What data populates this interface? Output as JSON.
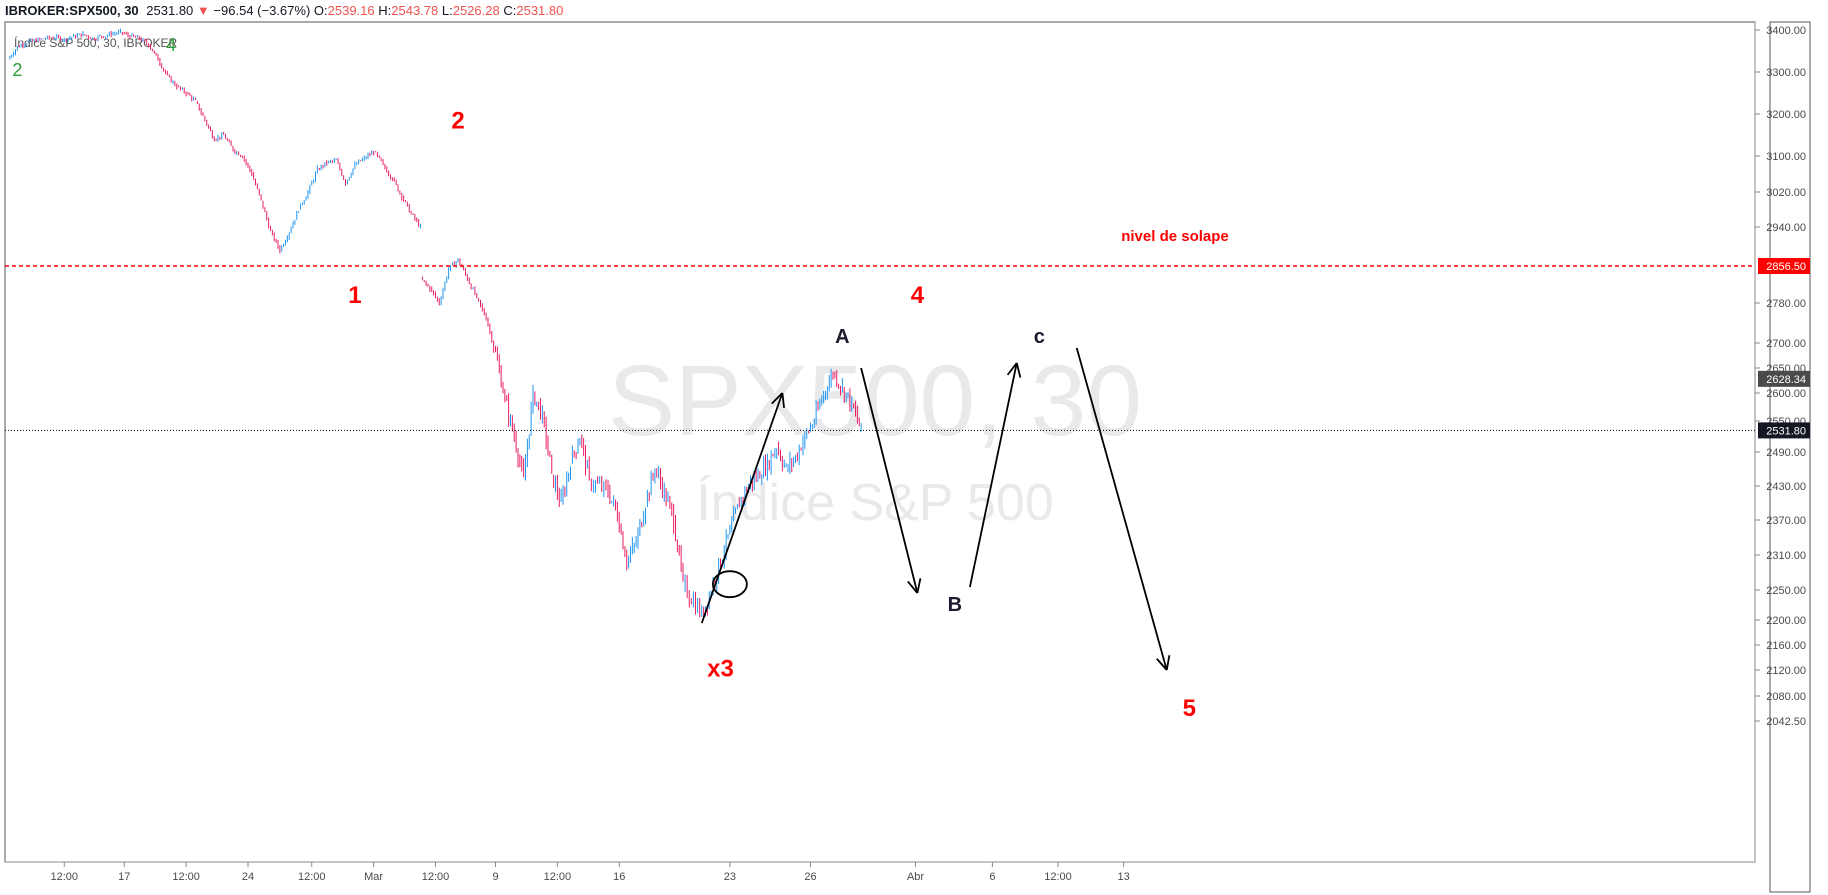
{
  "header": {
    "symbol": "IBROKER:SPX500, 30",
    "last": "2531.80",
    "change_arrow": "▼",
    "change": "−96.54 (−3.67%)",
    "o_label": "O:",
    "o_value": "2539.16",
    "h_label": "H:",
    "h_value": "2543.78",
    "l_label": "L:",
    "l_value": "2526.28",
    "c_label": "C:",
    "c_value": "2531.80",
    "series_title": "Índice S&P 500, 30, IBROKER"
  },
  "watermark": {
    "main": "SPX500, 30",
    "sub": "Índice S&P 500"
  },
  "colors": {
    "up": "#2196f3",
    "down": "#e91e63",
    "wave_red": "#ff0000",
    "wave_green": "#2e9e3a",
    "line_black": "#000000",
    "price_tag_current": "#131722",
    "price_tag_prev": "#4a4a4a",
    "price_tag_level": "#ff0000"
  },
  "chart_data": {
    "type": "candlestick",
    "y_axis": {
      "side": "right",
      "ticks": [
        "3400.00",
        "3300.00",
        "3200.00",
        "3100.00",
        "3020.00",
        "2940.00",
        "2780.00",
        "2700.00",
        "2650.00",
        "2600.00",
        "2550.00",
        "2490.00",
        "2430.00",
        "2370.00",
        "2310.00",
        "2250.00",
        "2200.00",
        "2160.00",
        "2120.00",
        "2080.00",
        "2042.50"
      ],
      "price_tags": [
        {
          "label": "2856.50",
          "kind": "level"
        },
        {
          "label": "2628.34",
          "kind": "prev"
        },
        {
          "label": "2531.80",
          "kind": "current"
        }
      ]
    },
    "x_axis": {
      "ticks": [
        "12:00",
        "17",
        "12:00",
        "24",
        "12:00",
        "Mar",
        "12:00",
        "9",
        "12:00",
        "16",
        "23",
        "26",
        "Abr",
        "6",
        "12:00",
        "13"
      ]
    },
    "price_path": [
      [
        0,
        3330
      ],
      [
        0.5,
        3360
      ],
      [
        1,
        3370
      ],
      [
        1.5,
        3375
      ],
      [
        2,
        3380
      ],
      [
        2.5,
        3382
      ],
      [
        3,
        3378
      ],
      [
        3.5,
        3385
      ],
      [
        4,
        3390
      ],
      [
        4.5,
        3380
      ],
      [
        5,
        3385
      ],
      [
        5.5,
        3390
      ],
      [
        6,
        3395
      ],
      [
        6.5,
        3385
      ],
      [
        7,
        3380
      ],
      [
        7.5,
        3365
      ],
      [
        8,
        3330
      ],
      [
        8.5,
        3290
      ],
      [
        9,
        3265
      ],
      [
        9.5,
        3250
      ],
      [
        10,
        3230
      ],
      [
        10.5,
        3185
      ],
      [
        11,
        3140
      ],
      [
        11.5,
        3150
      ],
      [
        12,
        3115
      ],
      [
        12.5,
        3100
      ],
      [
        13,
        3060
      ],
      [
        13.5,
        3000
      ],
      [
        14,
        2930
      ],
      [
        14.5,
        2890
      ],
      [
        15,
        2930
      ],
      [
        15.5,
        2980
      ],
      [
        16,
        3020
      ],
      [
        16.5,
        3070
      ],
      [
        17,
        3085
      ],
      [
        17.5,
        3090
      ],
      [
        18,
        3040
      ],
      [
        18.5,
        3080
      ],
      [
        19,
        3095
      ],
      [
        19.5,
        3110
      ],
      [
        20,
        3080
      ],
      [
        20.5,
        3050
      ],
      [
        21,
        3010
      ],
      [
        21.5,
        2970
      ],
      [
        22,
        2940
      ],
      [
        22,
        2830
      ],
      [
        22.5,
        2810
      ],
      [
        23,
        2780
      ],
      [
        23.5,
        2850
      ],
      [
        24,
        2870
      ],
      [
        24.5,
        2830
      ],
      [
        25,
        2790
      ],
      [
        25.5,
        2750
      ],
      [
        26,
        2680
      ],
      [
        26.5,
        2590
      ],
      [
        27,
        2520
      ],
      [
        27.5,
        2440
      ],
      [
        28,
        2600
      ],
      [
        28.5,
        2560
      ],
      [
        29,
        2450
      ],
      [
        29.5,
        2400
      ],
      [
        30,
        2470
      ],
      [
        30.5,
        2520
      ],
      [
        31,
        2440
      ],
      [
        32,
        2420
      ],
      [
        32.5,
        2380
      ],
      [
        33,
        2300
      ],
      [
        33.5,
        2330
      ],
      [
        34,
        2400
      ],
      [
        34.5,
        2460
      ],
      [
        35,
        2420
      ],
      [
        35.5,
        2370
      ],
      [
        36,
        2260
      ],
      [
        37,
        2210
      ],
      [
        37.5,
        2250
      ],
      [
        38,
        2300
      ],
      [
        38.5,
        2350
      ],
      [
        39,
        2400
      ],
      [
        39.5,
        2430
      ],
      [
        40,
        2450
      ],
      [
        40.5,
        2470
      ],
      [
        41,
        2500
      ],
      [
        41.5,
        2460
      ],
      [
        42,
        2480
      ],
      [
        42.5,
        2520
      ],
      [
        43,
        2550
      ],
      [
        43.5,
        2600
      ],
      [
        44,
        2640
      ],
      [
        44.5,
        2610
      ],
      [
        45,
        2580
      ],
      [
        45.5,
        2531.8
      ]
    ],
    "levels": [
      {
        "price": 2856.5,
        "label": "nivel de solape",
        "style": "dashed",
        "color": "#ff0000"
      },
      {
        "price": 2531.8,
        "style": "dotted",
        "color": "#000000"
      }
    ],
    "wave_labels": [
      {
        "text": "2",
        "x": 0.5,
        "y": 3290,
        "color": "green"
      },
      {
        "text": "4",
        "x": 8.7,
        "y": 3350,
        "color": "green"
      },
      {
        "text": "1",
        "x": 18.5,
        "y": 2780,
        "color": "red"
      },
      {
        "text": "2",
        "x": 24,
        "y": 3165,
        "color": "red"
      },
      {
        "text": "x3",
        "x": 38,
        "y": 2110,
        "color": "red"
      },
      {
        "text": "4",
        "x": 48.5,
        "y": 2780,
        "color": "red"
      },
      {
        "text": "5",
        "x": 63,
        "y": 2050,
        "color": "red"
      },
      {
        "text": "A",
        "x": 44.5,
        "y": 2700,
        "color": "black"
      },
      {
        "text": "B",
        "x": 50.5,
        "y": 2215,
        "color": "black"
      },
      {
        "text": "c",
        "x": 55,
        "y": 2700,
        "color": "black"
      }
    ],
    "arrows": [
      {
        "from": [
          37,
          2195
        ],
        "to": [
          41.3,
          2600
        ]
      },
      {
        "from": [
          45.5,
          2650
        ],
        "to": [
          48.5,
          2245
        ]
      },
      {
        "from": [
          51.3,
          2255
        ],
        "to": [
          53.8,
          2660
        ]
      },
      {
        "from": [
          57,
          2690
        ],
        "to": [
          61.8,
          2120
        ]
      }
    ],
    "circle": {
      "x": 38.5,
      "y": 2260
    },
    "x_tick_positions": [
      3,
      6.2,
      9.5,
      12.8,
      16.2,
      19.5,
      22.8,
      26,
      29.3,
      32.6,
      38.5,
      42.8,
      48.4,
      52.5,
      56,
      59.5
    ]
  }
}
